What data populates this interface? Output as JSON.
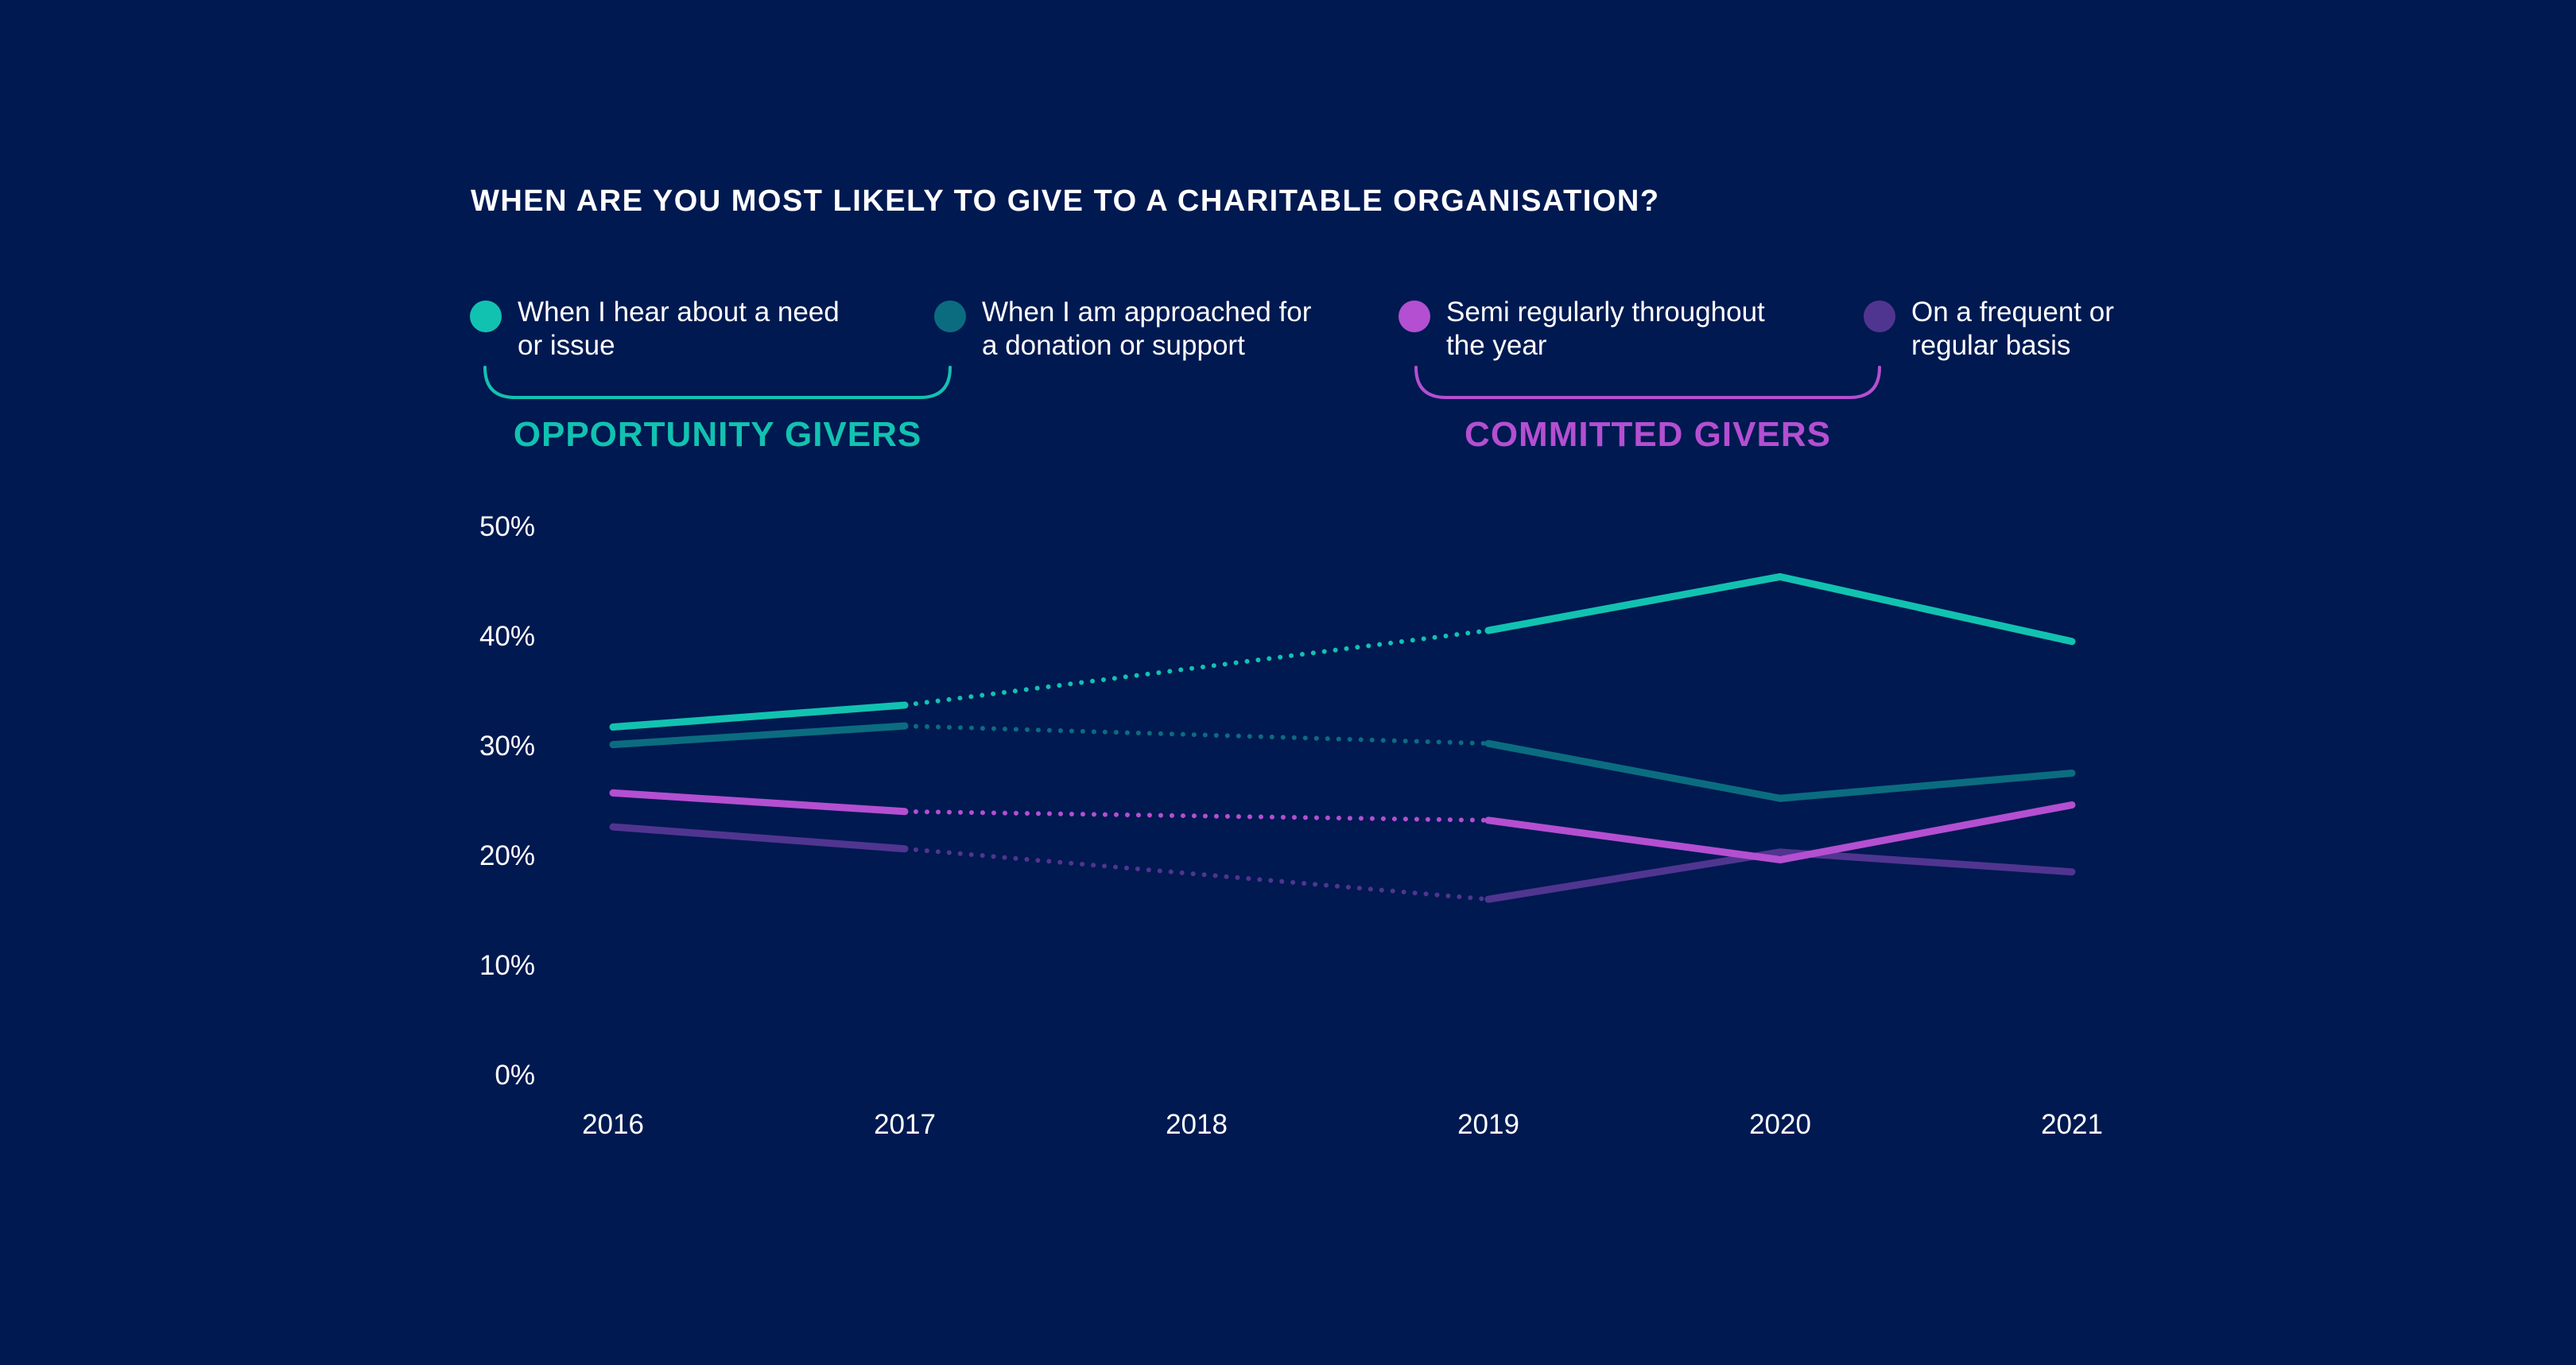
{
  "colors": {
    "background": "#001951",
    "teal": "#12c2b0",
    "dark_teal": "#0b6c80",
    "magenta": "#b44fd1",
    "purple": "#503590",
    "text": "#ffffff"
  },
  "groups": [
    {
      "label": "OPPORTUNITY GIVERS",
      "color": "#12c2b0"
    },
    {
      "label": "COMMITTED GIVERS",
      "color": "#b44fd1"
    }
  ],
  "chart_data": {
    "type": "line",
    "title": "WHEN ARE YOU MOST LIKELY TO GIVE TO A CHARITABLE ORGANISATION?",
    "x": [
      2016,
      2017,
      2018,
      2019,
      2020,
      2021
    ],
    "x_tick_labels": [
      "2016",
      "2017",
      "2018",
      "2019",
      "2020",
      "2021"
    ],
    "y_tick_labels": [
      "0%",
      "10%",
      "20%",
      "30%",
      "40%",
      "50%"
    ],
    "y_ticks": [
      0,
      10,
      20,
      30,
      40,
      50
    ],
    "ylim": [
      0,
      50
    ],
    "grid": false,
    "legend_position": "top",
    "dotted_between": [
      2017,
      2019
    ],
    "series": [
      {
        "name": "When I hear about a need or issue",
        "legend_lines": [
          "When I hear about a need",
          "or issue"
        ],
        "color": "#12c2b0",
        "values": [
          31.7,
          33.7,
          null,
          40.5,
          45.4,
          39.5
        ]
      },
      {
        "name": "When I am approached for a donation or support",
        "legend_lines": [
          "When I am approached for",
          "a donation or support"
        ],
        "color": "#0b6c80",
        "values": [
          30.1,
          31.8,
          null,
          30.2,
          25.2,
          27.5
        ]
      },
      {
        "name": "Semi regularly throughout the year",
        "legend_lines": [
          "Semi regularly throughout",
          "the year"
        ],
        "color": "#b44fd1",
        "values": [
          25.7,
          24.0,
          null,
          23.2,
          19.6,
          24.6
        ]
      },
      {
        "name": "On a frequent or regular basis",
        "legend_lines": [
          "On a frequent or",
          "regular basis"
        ],
        "color": "#503590",
        "values": [
          22.6,
          20.6,
          null,
          16.0,
          20.3,
          18.5
        ]
      }
    ]
  }
}
